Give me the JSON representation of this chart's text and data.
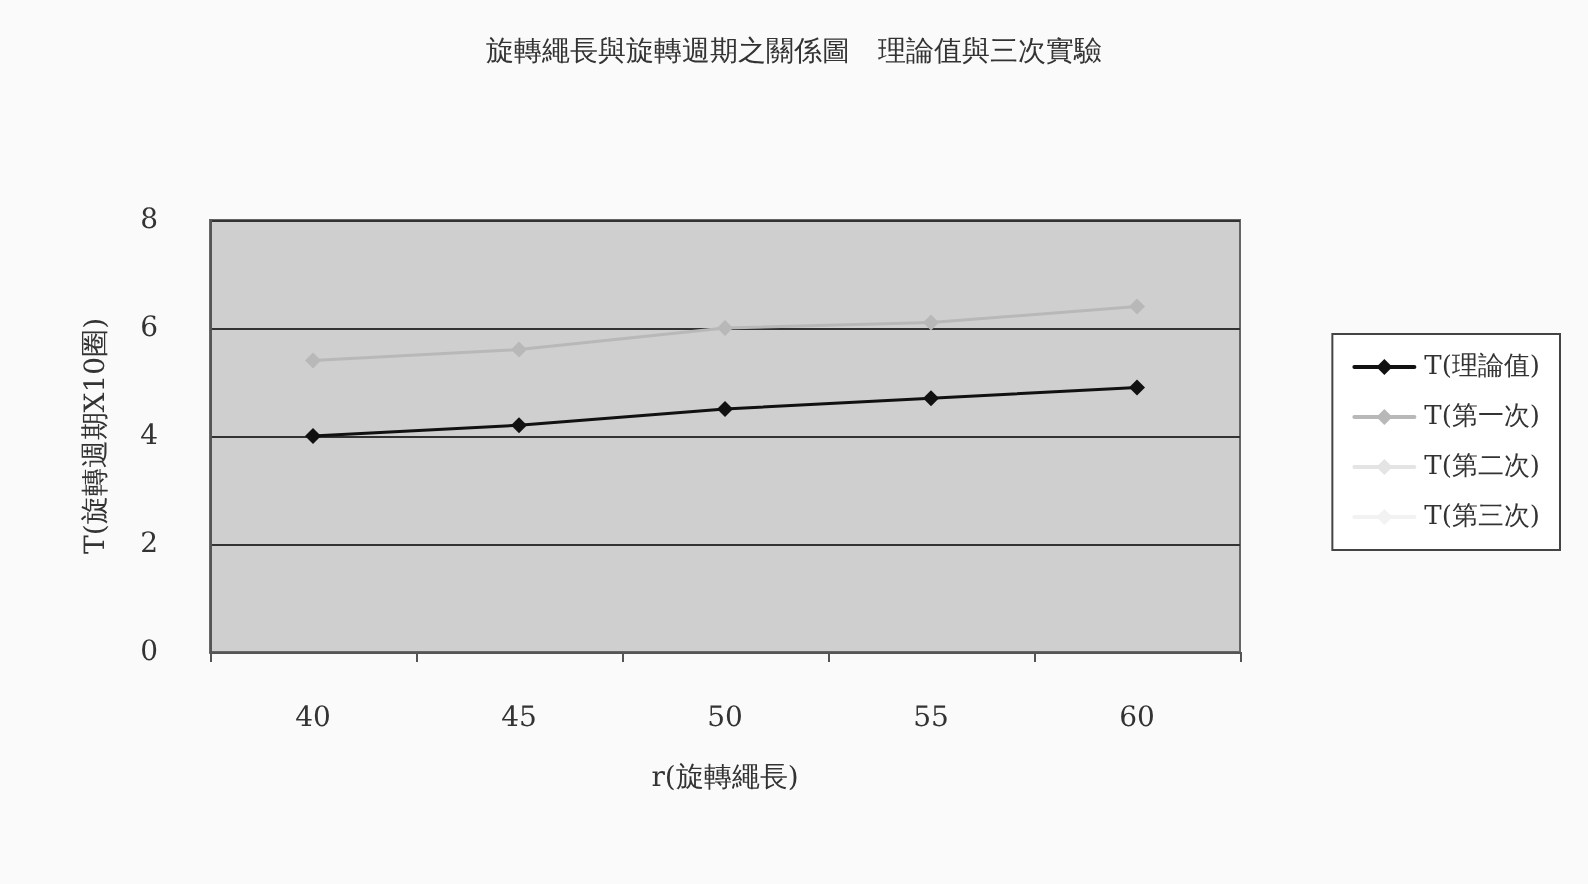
{
  "chart_data": {
    "type": "line",
    "title": "旋轉繩長與旋轉週期之關係圖　理論值與三次實驗",
    "xlabel": "r(旋轉繩長)",
    "ylabel": "T(旋轉週期X10圈)",
    "categories": [
      "40",
      "45",
      "50",
      "55",
      "60"
    ],
    "series": [
      {
        "name": "T(理論值)",
        "color": "#111111",
        "values": [
          4.0,
          4.2,
          4.5,
          4.7,
          4.9
        ]
      },
      {
        "name": "T(第一次)",
        "color": "#b8b8b8",
        "values": [
          5.4,
          5.6,
          6.0,
          6.1,
          6.4
        ]
      },
      {
        "name": "T(第二次)",
        "color": "#e4e4e4",
        "values": [
          null,
          null,
          null,
          null,
          null
        ]
      },
      {
        "name": "T(第三次)",
        "color": "#f2f2f2",
        "values": [
          null,
          null,
          null,
          null,
          null
        ]
      }
    ],
    "ylim": [
      0,
      8
    ],
    "yticks": [
      0,
      2,
      4,
      6,
      8
    ],
    "grid": "y",
    "legend": "right",
    "marker": "diamond",
    "line_style": "solid"
  }
}
